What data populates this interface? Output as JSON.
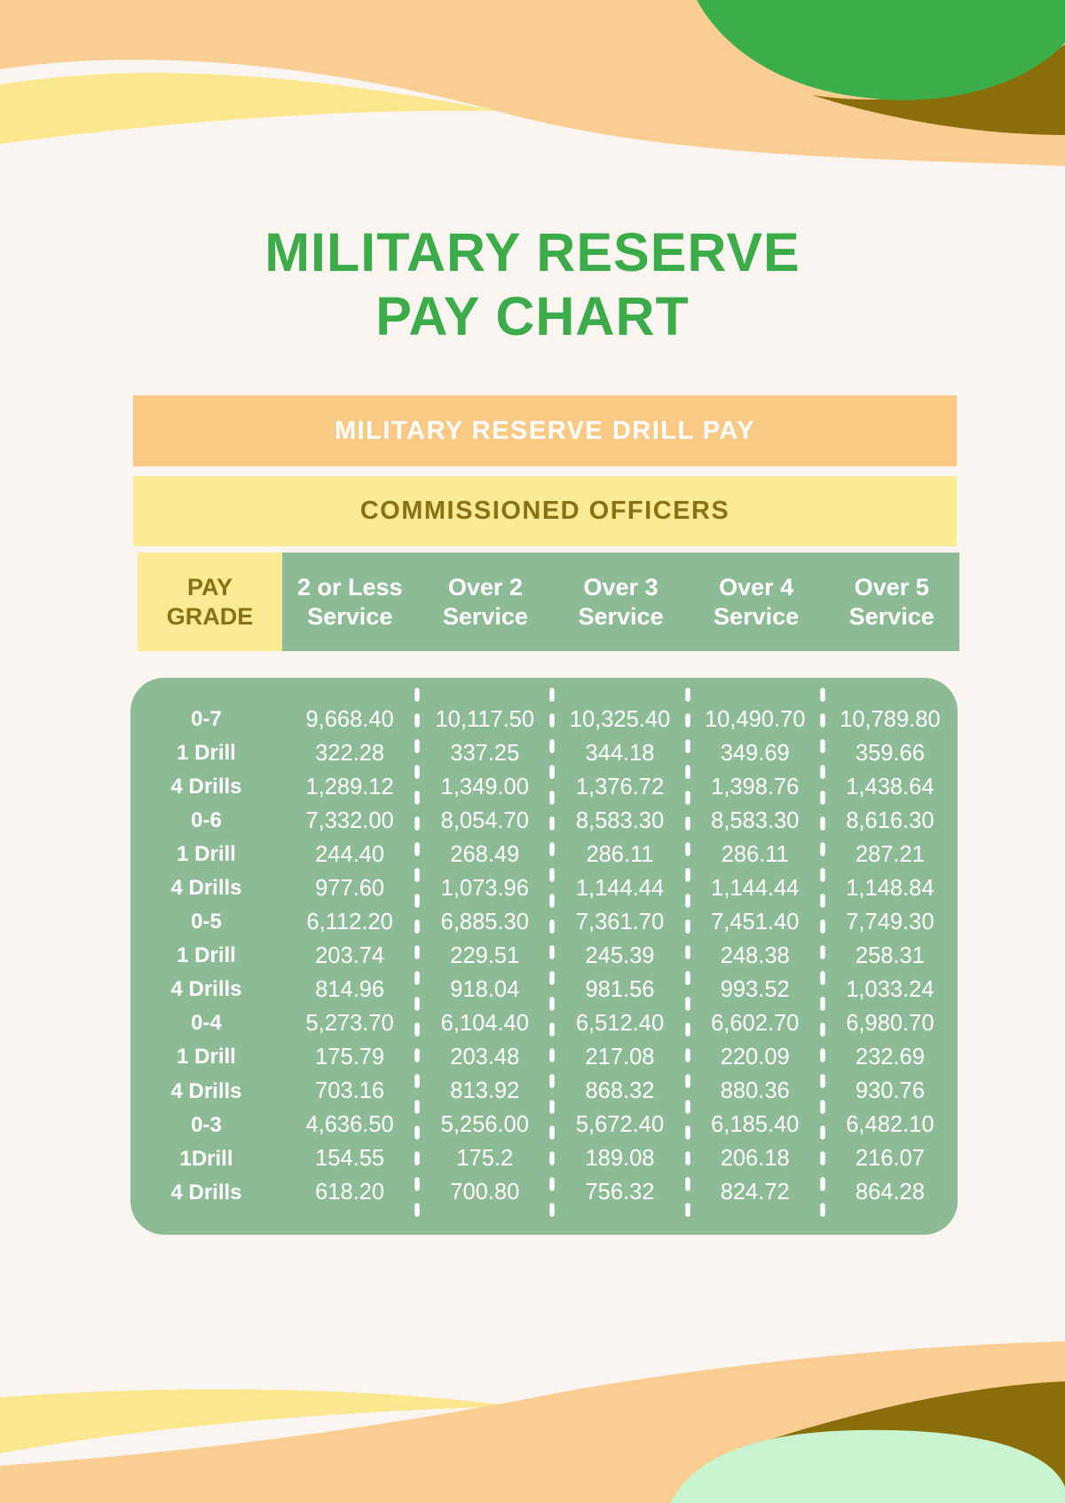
{
  "page": {
    "title_line1": "MILITARY RESERVE",
    "title_line2": "PAY CHART"
  },
  "banners": {
    "primary": "MILITARY RESERVE DRILL PAY",
    "secondary": "COMMISSIONED OFFICERS"
  },
  "table": {
    "corner_line1": "PAY",
    "corner_line2": "GRADE",
    "columns": [
      {
        "line1": "2 or Less",
        "line2": "Service"
      },
      {
        "line1": "Over 2",
        "line2": "Service"
      },
      {
        "line1": "Over 3",
        "line2": "Service"
      },
      {
        "line1": "Over 4",
        "line2": "Service"
      },
      {
        "line1": "Over 5",
        "line2": "Service"
      }
    ],
    "rows": [
      {
        "label": "0-7",
        "values": [
          "9,668.40",
          "10,117.50",
          "10,325.40",
          "10,490.70",
          "10,789.80"
        ]
      },
      {
        "label": "1 Drill",
        "values": [
          "322.28",
          "337.25",
          "344.18",
          "349.69",
          "359.66"
        ]
      },
      {
        "label": "4 Drills",
        "values": [
          "1,289.12",
          "1,349.00",
          "1,376.72",
          "1,398.76",
          "1,438.64"
        ]
      },
      {
        "label": "0-6",
        "values": [
          "7,332.00",
          "8,054.70",
          "8,583.30",
          "8,583.30",
          "8,616.30"
        ]
      },
      {
        "label": "1 Drill",
        "values": [
          "244.40",
          "268.49",
          "286.11",
          "286.11",
          "287.21"
        ]
      },
      {
        "label": "4 Drills",
        "values": [
          "977.60",
          "1,073.96",
          "1,144.44",
          "1,144.44",
          "1,148.84"
        ]
      },
      {
        "label": "0-5",
        "values": [
          "6,112.20",
          "6,885.30",
          "7,361.70",
          "7,451.40",
          "7,749.30"
        ]
      },
      {
        "label": "1 Drill",
        "values": [
          "203.74",
          "229.51",
          "245.39",
          "248.38",
          "258.31"
        ]
      },
      {
        "label": "4 Drills",
        "values": [
          "814.96",
          "918.04",
          "981.56",
          "993.52",
          "1,033.24"
        ]
      },
      {
        "label": "0-4",
        "values": [
          "5,273.70",
          "6,104.40",
          "6,512.40",
          "6,602.70",
          "6,980.70"
        ]
      },
      {
        "label": "1 Drill",
        "values": [
          "175.79",
          "203.48",
          "217.08",
          "220.09",
          "232.69"
        ]
      },
      {
        "label": "4 Drills",
        "values": [
          "703.16",
          "813.92",
          "868.32",
          "880.36",
          "930.76"
        ]
      },
      {
        "label": "0-3",
        "values": [
          "4,636.50",
          "5,256.00",
          "5,672.40",
          "6,185.40",
          "6,482.10"
        ]
      },
      {
        "label": "1Drill",
        "values": [
          "154.55",
          "175.2",
          "189.08",
          "206.18",
          "216.07"
        ]
      },
      {
        "label": "4 Drills",
        "values": [
          "618.20",
          "700.80",
          "756.32",
          "824.72",
          "864.28"
        ]
      }
    ]
  },
  "colors": {
    "background": "#FBF5F2",
    "title_green": "#3BAC49",
    "banner_orange": "#FACA84",
    "banner_yellow": "#FBEB94",
    "olive_text": "#8A7214",
    "table_sage": "#8DBB95",
    "wave_peach": "#FACE93",
    "wave_yellow": "#FBE88E",
    "wave_green": "#3BAE4A",
    "wave_olive": "#8B6E0C",
    "wave_mint": "#C9F4D0"
  }
}
